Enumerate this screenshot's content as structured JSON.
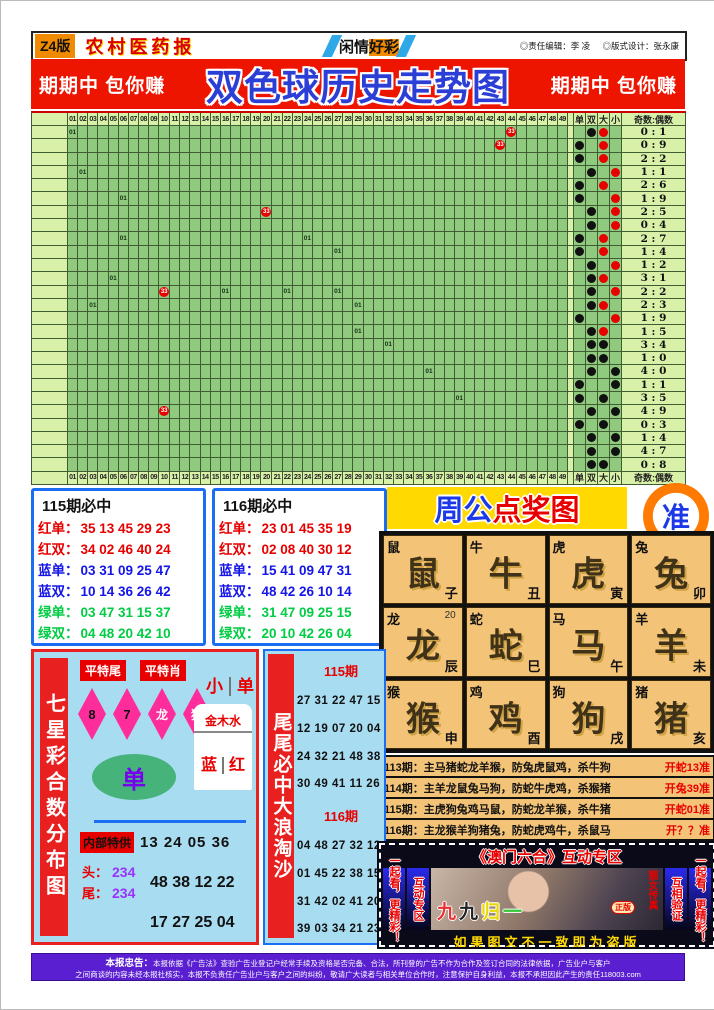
{
  "colors": {
    "banner_red": "#ee1500",
    "title_blue": "#2b3fd6",
    "grid_green": "#8fca7e",
    "grid_light": "#d8f0a8",
    "panel_border_blue": "#1b6ef3",
    "yellow": "#ffd900",
    "tan": "#f3c377",
    "light_blue": "#a8dcf0",
    "purple": "#5a1fd0",
    "pink": "#ff2d9b",
    "red": "#e80000"
  },
  "header": {
    "edition": "Z4版",
    "paper": "农村医药报",
    "column_pre": "闲情",
    "column_hl": "好彩",
    "editor": "◎责任编辑：李 凌",
    "designer": "◎版式设计：张永康"
  },
  "banner": {
    "left": "期期中 包你赚",
    "title": "双色球历史走势图",
    "right": "期期中 包你赚"
  },
  "trend": {
    "columns": [
      "01",
      "02",
      "03",
      "04",
      "05",
      "06",
      "07",
      "08",
      "09",
      "10",
      "11",
      "12",
      "13",
      "14",
      "15",
      "16",
      "17",
      "18",
      "19",
      "20",
      "21",
      "22",
      "23",
      "24",
      "25",
      "26",
      "27",
      "28",
      "29",
      "30",
      "31",
      "32",
      "33",
      "34",
      "35",
      "36",
      "37",
      "38",
      "39",
      "40",
      "41",
      "42",
      "43",
      "44",
      "45",
      "46",
      "47",
      "48",
      "49"
    ],
    "corner_headers": [
      "单",
      "双",
      "大",
      "小",
      "奇数:偶数"
    ],
    "rows": [
      {
        "marks": [
          {
            "c": 1,
            "t": "01"
          },
          {
            "c": 44,
            "t": "33"
          }
        ],
        "odd": "双",
        "size": "大",
        "size_color": "red",
        "ratio": "0 : 1"
      },
      {
        "marks": [
          {
            "c": 43,
            "t": "33"
          }
        ],
        "odd": "单",
        "size": "大",
        "size_color": "red",
        "ratio": "0 : 9"
      },
      {
        "marks": [],
        "odd": "单",
        "size": "大",
        "size_color": "red",
        "ratio": "2 : 2"
      },
      {
        "marks": [
          {
            "c": 2,
            "t": "01"
          }
        ],
        "odd": "双",
        "size": "小",
        "size_color": "red",
        "ratio": "1 : 1"
      },
      {
        "marks": [],
        "odd": "单",
        "size": "大",
        "size_color": "red",
        "ratio": "2 : 6"
      },
      {
        "marks": [
          {
            "c": 6,
            "t": "01"
          }
        ],
        "odd": "单",
        "size": "小",
        "size_color": "red",
        "ratio": "1 : 9"
      },
      {
        "marks": [
          {
            "c": 20,
            "t": "33"
          }
        ],
        "odd": "双",
        "size": "小",
        "size_color": "red",
        "ratio": "2 : 5"
      },
      {
        "marks": [],
        "odd": "双",
        "size": "小",
        "size_color": "red",
        "ratio": "0 : 4"
      },
      {
        "marks": [
          {
            "c": 6,
            "t": "01"
          },
          {
            "c": 24,
            "t": "01"
          }
        ],
        "odd": "单",
        "size": "大",
        "size_color": "red",
        "ratio": "2 : 7"
      },
      {
        "marks": [
          {
            "c": 27,
            "t": "01"
          }
        ],
        "odd": "单",
        "size": "大",
        "size_color": "red",
        "ratio": "1 : 4"
      },
      {
        "marks": [],
        "odd": "双",
        "size": "小",
        "size_color": "red",
        "ratio": "1 : 2"
      },
      {
        "marks": [
          {
            "c": 5,
            "t": "01"
          }
        ],
        "odd": "双",
        "size": "大",
        "size_color": "red",
        "ratio": "3 : 1"
      },
      {
        "marks": [
          {
            "c": 10,
            "t": "33"
          },
          {
            "c": 16,
            "t": "01"
          },
          {
            "c": 22,
            "t": "01"
          },
          {
            "c": 27,
            "t": "01"
          }
        ],
        "odd": "双",
        "size": "小",
        "size_color": "red",
        "ratio": "2 : 2"
      },
      {
        "marks": [
          {
            "c": 3,
            "t": "01"
          },
          {
            "c": 29,
            "t": "01"
          }
        ],
        "odd": "双",
        "size": "大",
        "size_color": "red",
        "ratio": "2 : 3"
      },
      {
        "marks": [],
        "odd": "单",
        "size": "小",
        "size_color": "red",
        "ratio": "1 : 9"
      },
      {
        "marks": [
          {
            "c": 29,
            "t": "01"
          }
        ],
        "odd": "双",
        "size": "大",
        "size_color": "red",
        "ratio": "1 : 5"
      },
      {
        "marks": [
          {
            "c": 32,
            "t": "01"
          }
        ],
        "odd": "双",
        "size": "大",
        "size_color": "black",
        "ratio": "3 : 4"
      },
      {
        "marks": [],
        "odd": "双",
        "size": "大",
        "size_color": "black",
        "ratio": "1 : 0"
      },
      {
        "marks": [
          {
            "c": 36,
            "t": "01"
          }
        ],
        "odd": "双",
        "size": "小",
        "size_color": "black",
        "ratio": "4 : 0"
      },
      {
        "marks": [],
        "odd": "单",
        "size": "小",
        "size_color": "black",
        "ratio": "1 : 1"
      },
      {
        "marks": [
          {
            "c": 39,
            "t": "01"
          }
        ],
        "odd": "单",
        "size": "大",
        "size_color": "black",
        "ratio": "3 : 5"
      },
      {
        "marks": [
          {
            "c": 10,
            "t": "33"
          }
        ],
        "odd": "双",
        "size": "小",
        "size_color": "black",
        "ratio": "4 : 9"
      },
      {
        "marks": [],
        "odd": "单",
        "size": "大",
        "size_color": "black",
        "ratio": "0 : 3"
      },
      {
        "marks": [],
        "odd": "双",
        "size": "小",
        "size_color": "black",
        "ratio": "1 : 4"
      },
      {
        "marks": [],
        "odd": "双",
        "size": "小",
        "size_color": "black",
        "ratio": "4 : 7"
      },
      {
        "marks": [],
        "odd": "双",
        "size": "大",
        "size_color": "black",
        "ratio": "0 : 8"
      }
    ]
  },
  "picks": [
    {
      "title": "115期必中",
      "rows": [
        {
          "label": "红单：",
          "value": "35 13 45 29 23",
          "color": "red"
        },
        {
          "label": "红双：",
          "value": "34 02 46 40 24",
          "color": "red"
        },
        {
          "label": "蓝单：",
          "value": "03 31 09 25 47",
          "color": "blue"
        },
        {
          "label": "蓝双：",
          "value": "10 14 36 26 42",
          "color": "blue"
        },
        {
          "label": "绿单：",
          "value": "03 47 31 15 37",
          "color": "green"
        },
        {
          "label": "绿双：",
          "value": "04 48 20 42 10",
          "color": "green"
        }
      ]
    },
    {
      "title": "116期必中",
      "rows": [
        {
          "label": "红单：",
          "value": "23 01 45 35 19",
          "color": "red"
        },
        {
          "label": "红双：",
          "value": "02 08 40 30 12",
          "color": "red"
        },
        {
          "label": "蓝单：",
          "value": "15 41 09 47 31",
          "color": "blue"
        },
        {
          "label": "蓝双：",
          "value": "48 42 26 10 14",
          "color": "blue"
        },
        {
          "label": "绿单：",
          "value": "31 47 09 25 15",
          "color": "green"
        },
        {
          "label": "绿双：",
          "value": "20 10 42 26 04",
          "color": "green"
        }
      ]
    }
  ],
  "zhougong": {
    "title_blue": "周公",
    "title_red": "点奖图",
    "badge": "准",
    "cells": [
      {
        "name": "鼠",
        "branch": "子"
      },
      {
        "name": "牛",
        "branch": "丑"
      },
      {
        "name": "虎",
        "branch": "寅"
      },
      {
        "name": "兔",
        "branch": "卯"
      },
      {
        "name": "龙",
        "branch": "辰",
        "note": "20"
      },
      {
        "name": "蛇",
        "branch": "巳"
      },
      {
        "name": "马",
        "branch": "午"
      },
      {
        "name": "羊",
        "branch": "未"
      },
      {
        "name": "猴",
        "branch": "申"
      },
      {
        "name": "鸡",
        "branch": "酉"
      },
      {
        "name": "狗",
        "branch": "戌"
      },
      {
        "name": "猪",
        "branch": "亥"
      }
    ]
  },
  "predictions": [
    {
      "label": "113期：",
      "text": "主马猪蛇龙羊猴，防兔虎鼠鸡，杀牛狗",
      "result": "开蛇13准"
    },
    {
      "label": "114期：",
      "text": "主羊龙鼠兔马狗，防蛇牛虎鸡，杀猴猪",
      "result": "开兔39准"
    },
    {
      "label": "115期：",
      "text": "主虎狗兔鸡马鼠，防蛇龙羊猴，杀牛猪",
      "result": "开蛇01准"
    },
    {
      "label": "116期：",
      "text": "主龙猴羊狗猪兔，防蛇虎鸡牛，杀鼠马",
      "result": "开？？准"
    }
  ],
  "qixing": {
    "side": "七星彩合数分布图",
    "tag1": "平特尾",
    "tag2": "平特肖",
    "diamonds": [
      "8",
      "7",
      "龙",
      "猴"
    ],
    "xiao": "小",
    "dan_small": "单",
    "wuxing": "金木水",
    "lan": "蓝",
    "hong": "红",
    "dan_big": "单",
    "neibu": "内部特供",
    "nums1": "13 24 05 36",
    "tou": "头：",
    "tou_digits": "234",
    "wei": "尾：",
    "wei_digits": "234",
    "nums2": "48 38 12 22",
    "nums3": "17 27 25 04"
  },
  "weiwei": {
    "side": "尾尾必中大浪淘沙",
    "p115": "115期",
    "rows115": [
      "27 31 22 47 15",
      "12 19 07 20 04",
      "24 32 21 48 38",
      "30 49 41 11 26"
    ],
    "p116": "116期",
    "rows116": [
      "04 48 27 32 12",
      "01 45 22 38 15",
      "31 42 02 41 20",
      "39 03 34 21 23"
    ]
  },
  "aomen": {
    "title": "《澳门六合》互动专区",
    "left_outer": "一起看，更精彩！",
    "left_inner": "互动专区",
    "right_inner": "互相验证",
    "right_outer": "一起看，更精彩！",
    "photo_chars": [
      {
        "ch": "九",
        "color": "#e83030"
      },
      {
        "ch": "九",
        "color": "#222222"
      },
      {
        "ch": "归",
        "color": "#e8d800"
      },
      {
        "ch": "一",
        "color": "#30c830"
      }
    ],
    "photo_side": "靓女传真",
    "badge": "正版",
    "caption": "如果图文不一致即为盗版"
  },
  "footer": {
    "l1_bold": "本报忠告：",
    "l1": "本报依据《广告法》查验广告业登记户经常手续及资格是否完备、合法，所刊登的广告不作为合作及签订合同的法律依据，广告业户与客户",
    "l2": "之间商谈的内容未经本报社核实，本报不负责任广告业户与客户之间的纠纷，敬请广大读者与相关单位合作时，注意保护自身利益，本报不承担因此产生的责任118003.com"
  }
}
